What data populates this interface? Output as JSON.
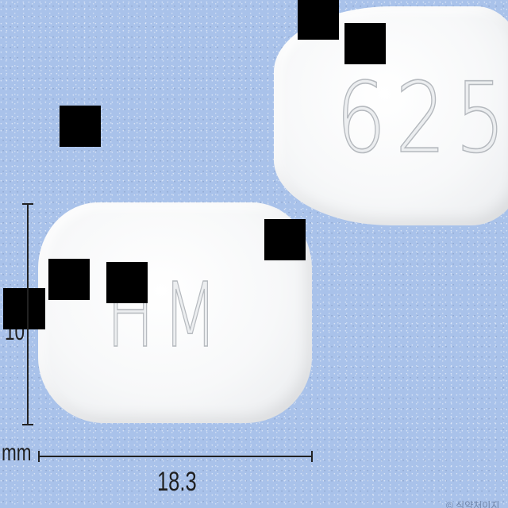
{
  "photo": {
    "background_color": "#a9c2ea",
    "tablet_color": "#f7f8f9",
    "redaction_color": "#000000"
  },
  "tablets": {
    "back_imprint": "625",
    "front_imprint": "HM"
  },
  "dimensions": {
    "width_value": "18.3",
    "height_value": "10",
    "unit": "mm"
  },
  "watermark": {
    "text": "© 식약처이지"
  }
}
